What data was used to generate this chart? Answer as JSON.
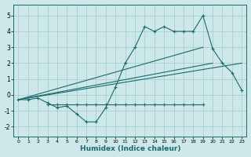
{
  "xlabel": "Humidex (Indice chaleur)",
  "background_color": "#cce8e8",
  "grid_color": "#aacece",
  "line_color": "#1a6b6b",
  "xlim": [
    -0.5,
    23.5
  ],
  "ylim": [
    -2.6,
    5.7
  ],
  "xticks": [
    0,
    1,
    2,
    3,
    4,
    5,
    6,
    7,
    8,
    9,
    10,
    11,
    12,
    13,
    14,
    15,
    16,
    17,
    18,
    19,
    20,
    21,
    22,
    23
  ],
  "yticks": [
    -2,
    -1,
    0,
    1,
    2,
    3,
    4,
    5
  ],
  "series1_x": [
    0,
    1,
    2,
    3,
    4,
    5,
    6,
    7,
    8,
    9,
    10,
    11,
    12,
    13,
    14,
    15,
    16,
    17,
    18,
    19,
    20,
    21,
    22,
    23
  ],
  "series1_y": [
    -0.3,
    -0.3,
    -0.2,
    -0.5,
    -0.8,
    -0.7,
    -1.2,
    -1.7,
    -1.7,
    -0.8,
    0.5,
    2.0,
    3.0,
    4.3,
    4.0,
    4.3,
    4.0,
    4.0,
    4.0,
    5.0,
    2.9,
    2.0,
    1.4,
    0.3
  ],
  "series2_x": [
    3,
    4,
    5,
    6,
    7,
    8,
    9,
    10,
    11,
    12,
    13,
    14,
    15,
    16,
    17,
    18,
    19
  ],
  "series2_y": [
    -0.6,
    -0.6,
    -0.6,
    -0.6,
    -0.6,
    -0.6,
    -0.6,
    -0.6,
    -0.6,
    -0.6,
    -0.6,
    -0.6,
    -0.6,
    -0.6,
    -0.6,
    -0.6,
    -0.6
  ],
  "line1_x": [
    0,
    19
  ],
  "line1_y": [
    -0.3,
    3.0
  ],
  "line2_x": [
    0,
    20
  ],
  "line2_y": [
    -0.3,
    2.0
  ],
  "line3_x": [
    0,
    23
  ],
  "line3_y": [
    -0.3,
    2.0
  ]
}
